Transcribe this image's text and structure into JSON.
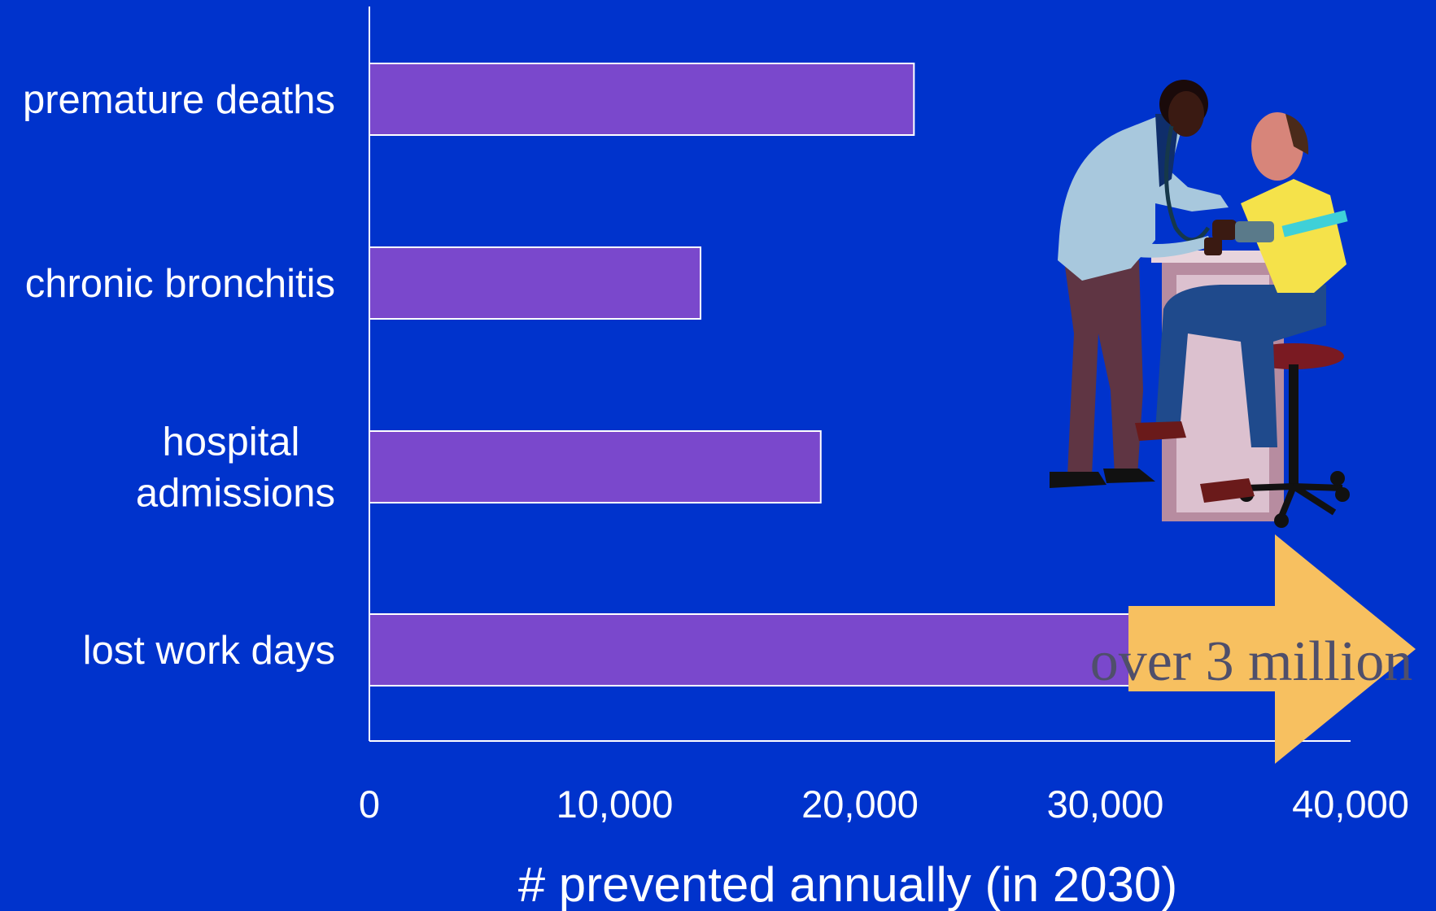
{
  "chart_data": {
    "type": "bar",
    "orientation": "horizontal",
    "categories": [
      [
        "premature deaths"
      ],
      [
        "chronic bronchitis"
      ],
      [
        "hospital",
        "admissions"
      ],
      [
        "lost work days"
      ]
    ],
    "values": [
      22200,
      13500,
      18400,
      40000
    ],
    "xlabel": "# prevented annually (in 2030)",
    "xlim": [
      0,
      40000
    ],
    "xticks": [
      0,
      10000,
      20000,
      30000,
      40000
    ],
    "xtick_labels": [
      "0",
      "10,000",
      "20,000",
      "30,000",
      "40,000"
    ],
    "grid": false,
    "annotations": [
      {
        "text": "over 3 million",
        "refers_to": "lost work days",
        "shape": "arrow"
      }
    ],
    "colors": {
      "background": "#0033cc",
      "bar": "#7a48cc",
      "bar_outline": "#ffffff",
      "axis": "#ffffff",
      "arrow": "#f7c060",
      "arrow_text": "#4f4f6b"
    }
  },
  "illustration": {
    "icon": "doctor-taking-blood-pressure-clipart"
  }
}
